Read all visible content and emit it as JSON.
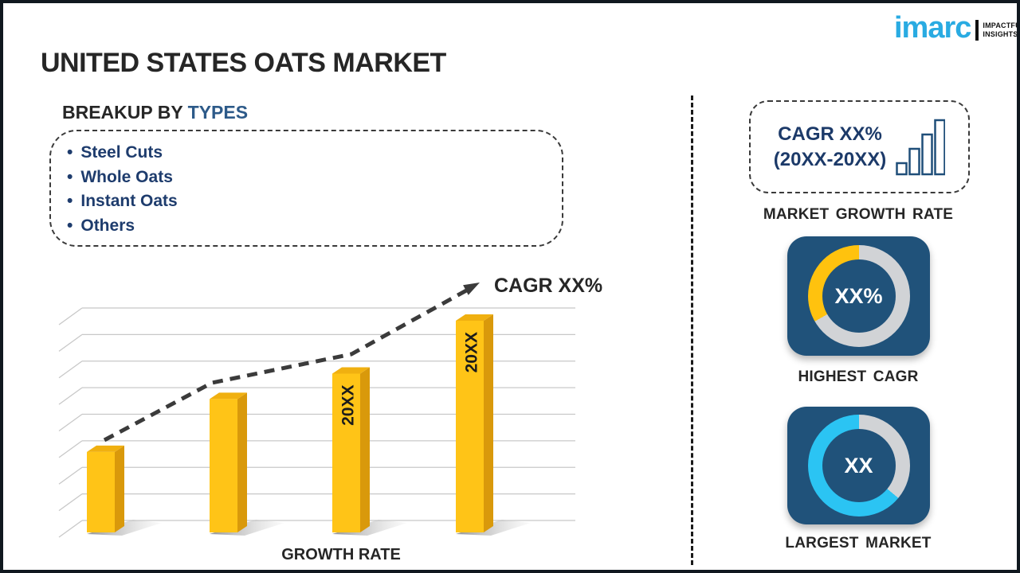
{
  "title": "UNITED STATES OATS MARKET",
  "logo": {
    "brand": "imarc",
    "tagline_line1": "IMPACTFUL",
    "tagline_line2": "INSIGHTS",
    "brand_color": "#29ABE2"
  },
  "breakup": {
    "heading_prefix": "BREAKUP BY ",
    "heading_highlight": "TYPES",
    "items": [
      {
        "label": "Steel Cuts"
      },
      {
        "label": "Whole Oats"
      },
      {
        "label": "Instant Oats"
      },
      {
        "label": "Others"
      }
    ]
  },
  "right_panel": {
    "growth_box": {
      "line1": "CAGR XX%",
      "line2": "(20XX-20XX)",
      "icon": "bar-chart-icon",
      "caption": "MARKET GROWTH RATE"
    },
    "highest_cagr_caption": "HIGHEST CAGR",
    "largest_market_caption": "LARGEST MARKET"
  },
  "colors": {
    "bar_front": "#FFC417",
    "bar_top": "#F0B010",
    "bar_side": "#D9990B",
    "gridline": "#c8c8c8",
    "trend": "#3b3b3b",
    "navy_text": "#1E3C6D",
    "tile_navy": "#20527A",
    "ring_track_gray": "#D1D3D6",
    "ring_yellow": "#FFC20E",
    "ring_cyan": "#2BC4F3"
  },
  "chart_data": [
    {
      "type": "bar",
      "title": "UNITED STATES OATS MARKET",
      "xlabel": "GROWTH RATE",
      "ylabel": "",
      "categories": [
        "",
        "",
        "20XX",
        "20XX"
      ],
      "bar_labels": [
        "",
        "",
        "20XX",
        "20XX"
      ],
      "values_relative": [
        0.38,
        0.63,
        0.75,
        1.0
      ],
      "values_note": "no numeric axis values shown; bars are placeholder years",
      "gridlines": 9,
      "grid_on": true,
      "legend": "none",
      "bar_color": "#FFC417",
      "trend": {
        "label": "CAGR XX%",
        "style": "dashed-arrow-up",
        "color": "#3b3b3b"
      }
    },
    {
      "type": "donut",
      "label": "HIGHEST CAGR",
      "center_value": "XX%",
      "fraction": 0.333,
      "ring_color": "#FFC20E",
      "track_color": "#D1D3D6",
      "tile_color": "#20527A"
    },
    {
      "type": "donut",
      "label": "LARGEST MARKET",
      "center_value": "XX",
      "fraction": 0.64,
      "ring_color": "#2BC4F3",
      "track_color": "#D1D3D6",
      "tile_color": "#20527A"
    }
  ]
}
